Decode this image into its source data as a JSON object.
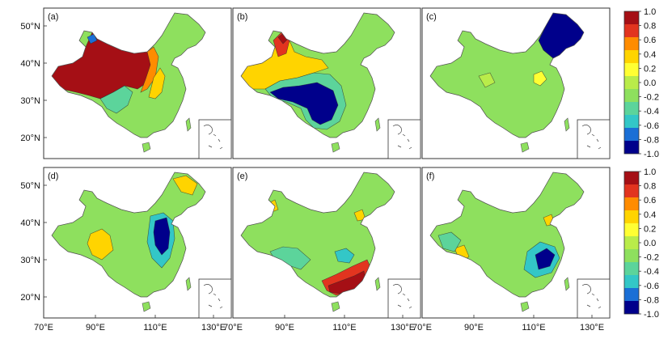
{
  "chart_data": {
    "type": "heatmap",
    "description_of_layout": "six map panels in a 2x3 grid with two shared colorbars",
    "panels": [
      {
        "label": "(a)",
        "dominant": [
          {
            "region": "western China",
            "value": 1.0
          },
          {
            "region": "north of Tibet",
            "value": -0.6
          },
          {
            "region": "southwest",
            "value": -0.3
          },
          {
            "region": "east",
            "value": 0.0
          }
        ]
      },
      {
        "label": "(b)",
        "dominant": [
          {
            "region": "northwest",
            "value": 0.8
          },
          {
            "region": "west-central",
            "value": 0.3
          },
          {
            "region": "southwest",
            "value": -1.0
          },
          {
            "region": "east",
            "value": -0.1
          }
        ]
      },
      {
        "label": "(c)",
        "dominant": [
          {
            "region": "northeast",
            "value": -1.0
          },
          {
            "region": "central",
            "value": 0.2
          },
          {
            "region": "elsewhere",
            "value": -0.1
          }
        ]
      },
      {
        "label": "(d)",
        "dominant": [
          {
            "region": "north China plain",
            "value": -1.0
          },
          {
            "region": "central",
            "value": 0.3
          },
          {
            "region": "elsewhere",
            "value": -0.1
          }
        ]
      },
      {
        "label": "(e)",
        "dominant": [
          {
            "region": "south coast",
            "value": 1.0
          },
          {
            "region": "southwest",
            "value": -0.4
          },
          {
            "region": "elsewhere",
            "value": -0.1
          }
        ]
      },
      {
        "label": "(f)",
        "dominant": [
          {
            "region": "east-central",
            "value": -1.0
          },
          {
            "region": "southwest",
            "value": 0.3
          },
          {
            "region": "elsewhere",
            "value": -0.1
          }
        ]
      }
    ],
    "x_ticks": [
      "70°E",
      "90°E",
      "110°E",
      "130°E"
    ],
    "y_ticks": [
      "50°N",
      "40°N",
      "30°N",
      "20°N"
    ],
    "colorbar": {
      "ticks": [
        "1.0",
        "0.8",
        "0.6",
        "0.4",
        "0.2",
        "0.0",
        "-0.2",
        "-0.4",
        "-0.6",
        "-0.8",
        "-1.0"
      ],
      "colors": [
        "#a50f15",
        "#e2341f",
        "#ff8c00",
        "#ffd400",
        "#ffff33",
        "#b9ec4a",
        "#8ee05e",
        "#5cd49b",
        "#33c7c7",
        "#1a6fd6",
        "#00008b"
      ]
    }
  },
  "panels_text": {
    "a": "(a)",
    "b": "(b)",
    "c": "(c)",
    "d": "(d)",
    "e": "(e)",
    "f": "(f)"
  },
  "axis_x": [
    "70°E",
    "90°E",
    "110°E",
    "130°E"
  ],
  "axis_y": [
    "50°N",
    "40°N",
    "30°N",
    "20°N"
  ]
}
